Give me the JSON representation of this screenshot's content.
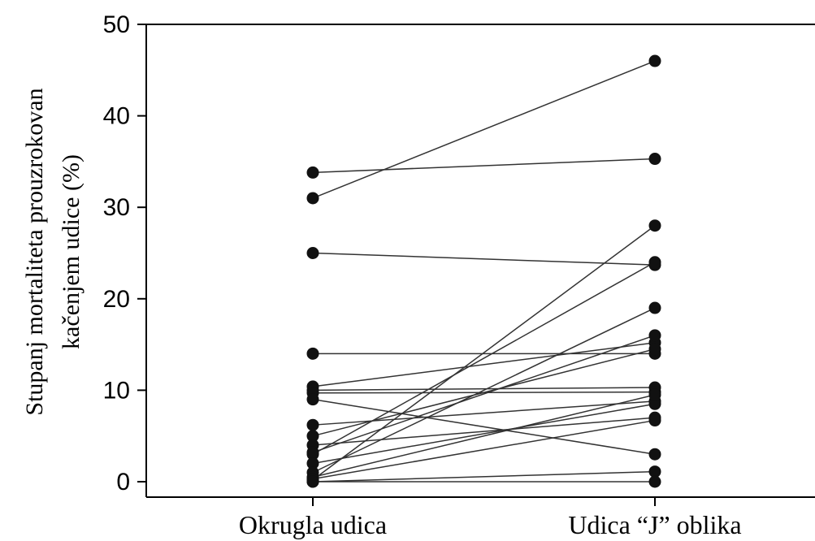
{
  "chart_data": {
    "type": "line",
    "title": "",
    "xlabel": "",
    "ylabel_lines": [
      "Stupanj mortaliteta prouzrokovan",
      "kačenjem udice (%)"
    ],
    "categories": [
      "Okrugla udica",
      "Udica “J” oblika"
    ],
    "ylim": [
      0,
      50
    ],
    "yticks": [
      0,
      10,
      20,
      30,
      40,
      50
    ],
    "grid": false,
    "legend": "none",
    "pairs": [
      [
        33.8,
        35.3
      ],
      [
        31,
        46
      ],
      [
        25,
        23.7
      ],
      [
        14,
        14
      ],
      [
        10.4,
        15.2
      ],
      [
        10,
        10.3
      ],
      [
        9.7,
        9.8
      ],
      [
        9,
        3
      ],
      [
        6.2,
        8.8
      ],
      [
        5,
        14.5
      ],
      [
        4,
        7
      ],
      [
        3.2,
        16
      ],
      [
        3,
        24
      ],
      [
        2,
        8.5
      ],
      [
        1,
        19
      ],
      [
        0.5,
        9.5
      ],
      [
        0.3,
        6.7
      ],
      [
        0.2,
        28
      ],
      [
        0,
        1.1
      ],
      [
        0,
        0
      ]
    ]
  },
  "colors": {
    "line": "#333333",
    "point": "#111111",
    "axis": "#000000"
  }
}
